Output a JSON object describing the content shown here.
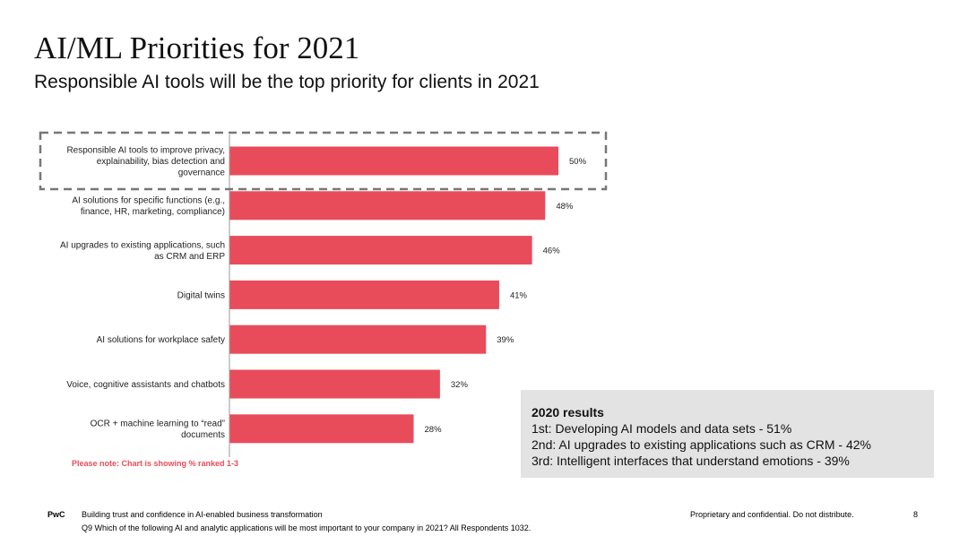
{
  "slide": {
    "title": "AI/ML Priorities for 2021",
    "subtitle": "Responsible AI tools will be the top priority for clients in 2021",
    "note": "Please note: Chart is showing % ranked 1-3",
    "accent_color": "#e84c5a",
    "note_color": "#e84c5a",
    "highlight_border_color": "#777777"
  },
  "chart_data": {
    "type": "bar",
    "orientation": "horizontal",
    "title": "",
    "xlabel": "",
    "ylabel": "",
    "xlim": [
      0,
      60
    ],
    "grid": false,
    "categories": [
      [
        "Responsible AI tools to improve privacy,",
        "explainability, bias detection and",
        "governance"
      ],
      [
        "AI solutions for specific functions (e.g.,",
        "finance, HR, marketing, compliance)"
      ],
      [
        "AI upgrades to existing applications, such",
        "as CRM and ERP"
      ],
      [
        "Digital twins"
      ],
      [
        "AI solutions for workplace safety"
      ],
      [
        "Voice, cognitive assistants and chatbots"
      ],
      [
        "OCR + machine learning to “read”",
        "documents"
      ]
    ],
    "values": [
      50,
      48,
      46,
      41,
      39,
      32,
      28
    ],
    "value_labels": [
      "50%",
      "48%",
      "46%",
      "41%",
      "39%",
      "32%",
      "28%"
    ],
    "highlighted_index": 0,
    "bar_color": "#e84c5a"
  },
  "results_2020": {
    "title": "2020 results",
    "items": [
      "1st: Developing AI models and data sets - 51%",
      "2nd: AI upgrades to existing applications such as CRM - 42%",
      "3rd: Intelligent interfaces that understand emotions - 39%"
    ]
  },
  "footer": {
    "brand": "PwC",
    "line1": "Building trust and confidence in AI-enabled business transformation",
    "line2": "Q9 Which of the following AI and analytic applications will be most important to your company in 2021? All Respondents 1032.",
    "confidential": "Proprietary and confidential. Do not distribute.",
    "page_number": "8"
  }
}
